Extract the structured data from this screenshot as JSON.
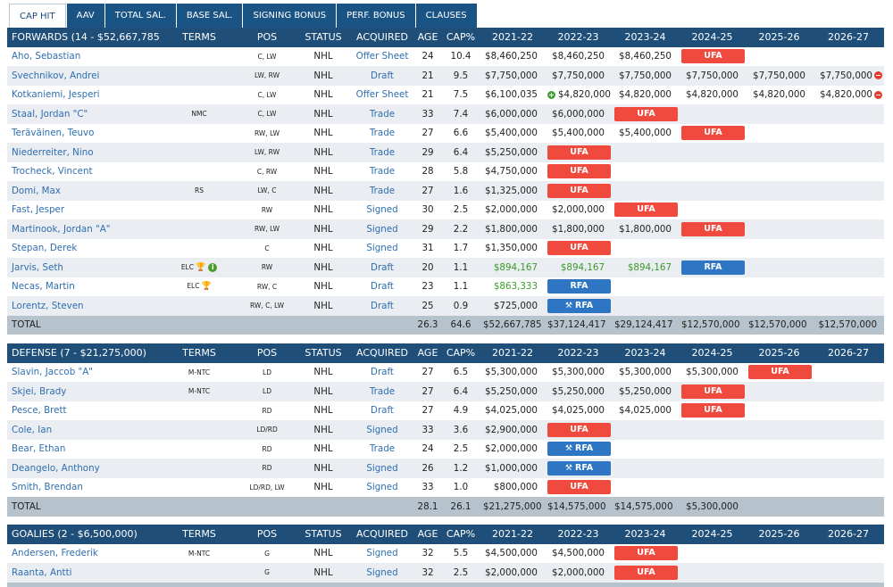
{
  "tabs": [
    "CAP HIT",
    "AAV",
    "TOTAL SAL.",
    "BASE SAL.",
    "SIGNING BONUS",
    "PERF. BONUS",
    "CLAUSES"
  ],
  "columns": [
    "TERMS",
    "POS",
    "STATUS",
    "ACQUIRED",
    "AGE",
    "CAP%",
    "2021-22",
    "2022-23",
    "2023-24",
    "2024-25",
    "2025-26",
    "2026-27"
  ],
  "colors": {
    "header": "#1f4e79",
    "ufa": "#f04a3f",
    "rfa": "#2e76c4",
    "elc_money": "#3a9b29"
  },
  "sections": [
    {
      "title": "FORWARDS (14 - $52,667,785)",
      "rows": [
        [
          "Aho, Sebastian",
          "",
          "C, LW",
          "NHL",
          "Offer Sheet",
          "24",
          "10.4",
          "$8,460,250",
          "$8,460,250",
          "$8,460,250",
          "UFA",
          "",
          ""
        ],
        [
          "Svechnikov, Andrei",
          "",
          "LW, RW",
          "NHL",
          "Draft",
          "21",
          "9.5",
          "$7,750,000",
          "$7,750,000",
          "$7,750,000",
          "$7,750,000",
          "$7,750,000",
          "$7,750,000"
        ],
        [
          "Kotkaniemi, Jesperi",
          "",
          "C, LW",
          "NHL",
          "Offer Sheet",
          "21",
          "7.5",
          "$6,100,035",
          "$4,820,000",
          "$4,820,000",
          "$4,820,000",
          "$4,820,000",
          "$4,820,000"
        ],
        [
          "Staal, Jordan \"C\"",
          "NMC",
          "C, LW",
          "NHL",
          "Trade",
          "33",
          "7.4",
          "$6,000,000",
          "$6,000,000",
          "UFA",
          "",
          "",
          ""
        ],
        [
          "Teräväinen, Teuvo",
          "",
          "RW, LW",
          "NHL",
          "Trade",
          "27",
          "6.6",
          "$5,400,000",
          "$5,400,000",
          "$5,400,000",
          "UFA",
          "",
          ""
        ],
        [
          "Niederreiter, Nino",
          "",
          "LW, RW",
          "NHL",
          "Trade",
          "29",
          "6.4",
          "$5,250,000",
          "UFA",
          "",
          "",
          "",
          ""
        ],
        [
          "Trocheck, Vincent",
          "",
          "C, RW",
          "NHL",
          "Trade",
          "28",
          "5.8",
          "$4,750,000",
          "UFA",
          "",
          "",
          "",
          ""
        ],
        [
          "Domi, Max",
          "RS",
          "LW, C",
          "NHL",
          "Trade",
          "27",
          "1.6",
          "$1,325,000",
          "UFA",
          "",
          "",
          "",
          ""
        ],
        [
          "Fast, Jesper",
          "",
          "RW",
          "NHL",
          "Signed",
          "30",
          "2.5",
          "$2,000,000",
          "$2,000,000",
          "UFA",
          "",
          "",
          ""
        ],
        [
          "Martinook, Jordan \"A\"",
          "",
          "RW, LW",
          "NHL",
          "Signed",
          "29",
          "2.2",
          "$1,800,000",
          "$1,800,000",
          "$1,800,000",
          "UFA",
          "",
          ""
        ],
        [
          "Stepan, Derek",
          "",
          "C",
          "NHL",
          "Signed",
          "31",
          "1.7",
          "$1,350,000",
          "UFA",
          "",
          "",
          "",
          ""
        ],
        [
          "Jarvis, Seth",
          "ELC",
          "RW",
          "NHL",
          "Draft",
          "20",
          "1.1",
          "$894,167",
          "$894,167",
          "$894,167",
          "RFA",
          "",
          ""
        ],
        [
          "Necas, Martin",
          "ELC",
          "RW, C",
          "NHL",
          "Draft",
          "23",
          "1.1",
          "$863,333",
          "RFA",
          "",
          "",
          "",
          ""
        ],
        [
          "Lorentz, Steven",
          "",
          "RW, C, LW",
          "NHL",
          "Draft",
          "25",
          "0.9",
          "$725,000",
          "RFA",
          "",
          "",
          "",
          ""
        ]
      ],
      "total": [
        "TOTAL",
        "",
        "",
        "",
        "",
        "26.3",
        "64.6",
        "$52,667,785",
        "$37,124,417",
        "$29,124,417",
        "$12,570,000",
        "$12,570,000",
        "$12,570,000"
      ]
    },
    {
      "title": "DEFENSE (7 - $21,275,000)",
      "rows": [
        [
          "Slavin, Jaccob \"A\"",
          "M-NTC",
          "LD",
          "NHL",
          "Draft",
          "27",
          "6.5",
          "$5,300,000",
          "$5,300,000",
          "$5,300,000",
          "$5,300,000",
          "UFA",
          ""
        ],
        [
          "Skjei, Brady",
          "M-NTC",
          "LD",
          "NHL",
          "Trade",
          "27",
          "6.4",
          "$5,250,000",
          "$5,250,000",
          "$5,250,000",
          "UFA",
          "",
          ""
        ],
        [
          "Pesce, Brett",
          "",
          "RD",
          "NHL",
          "Draft",
          "27",
          "4.9",
          "$4,025,000",
          "$4,025,000",
          "$4,025,000",
          "UFA",
          "",
          ""
        ],
        [
          "Cole, Ian",
          "",
          "LD/RD",
          "NHL",
          "Signed",
          "33",
          "3.6",
          "$2,900,000",
          "UFA",
          "",
          "",
          "",
          ""
        ],
        [
          "Bear, Ethan",
          "",
          "RD",
          "NHL",
          "Trade",
          "24",
          "2.5",
          "$2,000,000",
          "RFA",
          "",
          "",
          "",
          ""
        ],
        [
          "Deangelo, Anthony",
          "",
          "RD",
          "NHL",
          "Signed",
          "26",
          "1.2",
          "$1,000,000",
          "RFA",
          "",
          "",
          "",
          ""
        ],
        [
          "Smith, Brendan",
          "",
          "LD/RD, LW",
          "NHL",
          "Signed",
          "33",
          "1.0",
          "$800,000",
          "UFA",
          "",
          "",
          "",
          ""
        ]
      ],
      "total": [
        "TOTAL",
        "",
        "",
        "",
        "",
        "28.1",
        "26.1",
        "$21,275,000",
        "$14,575,000",
        "$14,575,000",
        "$5,300,000",
        "",
        ""
      ]
    },
    {
      "title": "GOALIES (2 - $6,500,000)",
      "rows": [
        [
          "Andersen, Frederik",
          "M-NTC",
          "G",
          "NHL",
          "Signed",
          "32",
          "5.5",
          "$4,500,000",
          "$4,500,000",
          "UFA",
          "",
          "",
          ""
        ],
        [
          "Raanta, Antti",
          "",
          "G",
          "NHL",
          "Signed",
          "32",
          "2.5",
          "$2,000,000",
          "$2,000,000",
          "UFA",
          "",
          "",
          ""
        ]
      ]
    }
  ],
  "icons": {
    "trophy": "trophy-icon",
    "info": "info-icon",
    "minus": "minus-circle-icon",
    "plus": "plus-circle-icon",
    "wrench": "wrench-icon"
  }
}
